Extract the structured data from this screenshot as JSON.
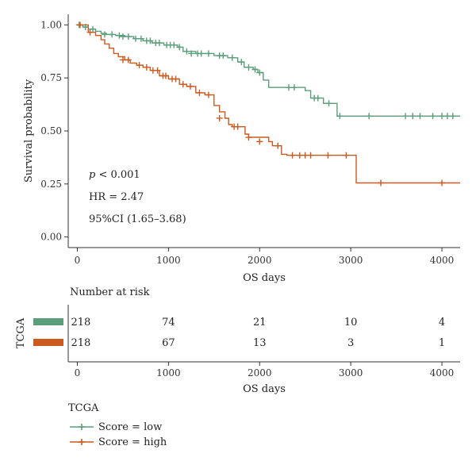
{
  "chart_data": {
    "type": "line",
    "xlabel": "OS days",
    "ylabel": "Survival probability",
    "xlim": [
      -100,
      4200
    ],
    "ylim": [
      -0.05,
      1.05
    ],
    "x_ticks": [
      0,
      1000,
      2000,
      3000,
      4000
    ],
    "y_ticks": [
      0.0,
      0.25,
      0.5,
      0.75,
      1.0
    ],
    "y_tick_labels": [
      "0.00",
      "0.25",
      "0.50",
      "0.75",
      "1.00"
    ],
    "annotations": {
      "p_value": "p < 0.001",
      "p_letter": "p",
      "p_rest": " < 0.001",
      "hr": "HR = 2.47",
      "ci": "95%CI (1.65–3.68)"
    },
    "legend": {
      "title": "TCGA",
      "placement": "bottom-left",
      "entries": [
        {
          "label": "Score = low",
          "color": "#5b9e7a"
        },
        {
          "label": "Score = high",
          "color": "#cc5a1f"
        }
      ]
    },
    "series": [
      {
        "name": "Score = low",
        "color": "#5b9e7a",
        "steps": [
          [
            0,
            1.0
          ],
          [
            60,
            0.99
          ],
          [
            120,
            0.98
          ],
          [
            200,
            0.97
          ],
          [
            260,
            0.96
          ],
          [
            320,
            0.955
          ],
          [
            420,
            0.95
          ],
          [
            520,
            0.945
          ],
          [
            620,
            0.935
          ],
          [
            720,
            0.925
          ],
          [
            820,
            0.915
          ],
          [
            950,
            0.905
          ],
          [
            1100,
            0.895
          ],
          [
            1160,
            0.875
          ],
          [
            1300,
            0.865
          ],
          [
            1500,
            0.855
          ],
          [
            1650,
            0.845
          ],
          [
            1760,
            0.825
          ],
          [
            1830,
            0.8
          ],
          [
            1930,
            0.79
          ],
          [
            1980,
            0.775
          ],
          [
            2040,
            0.74
          ],
          [
            2100,
            0.705
          ],
          [
            2500,
            0.69
          ],
          [
            2560,
            0.655
          ],
          [
            2700,
            0.63
          ],
          [
            2850,
            0.57
          ],
          [
            4200,
            0.57
          ]
        ],
        "censor": [
          [
            20,
            1.0
          ],
          [
            90,
            0.99
          ],
          [
            170,
            0.98
          ],
          [
            300,
            0.955
          ],
          [
            380,
            0.955
          ],
          [
            460,
            0.95
          ],
          [
            500,
            0.945
          ],
          [
            560,
            0.945
          ],
          [
            640,
            0.935
          ],
          [
            700,
            0.935
          ],
          [
            760,
            0.925
          ],
          [
            800,
            0.925
          ],
          [
            860,
            0.915
          ],
          [
            900,
            0.915
          ],
          [
            980,
            0.905
          ],
          [
            1020,
            0.905
          ],
          [
            1060,
            0.905
          ],
          [
            1120,
            0.895
          ],
          [
            1200,
            0.875
          ],
          [
            1250,
            0.865
          ],
          [
            1320,
            0.865
          ],
          [
            1360,
            0.865
          ],
          [
            1440,
            0.865
          ],
          [
            1560,
            0.855
          ],
          [
            1600,
            0.855
          ],
          [
            1700,
            0.845
          ],
          [
            1800,
            0.825
          ],
          [
            1880,
            0.8
          ],
          [
            1950,
            0.79
          ],
          [
            2000,
            0.775
          ],
          [
            2320,
            0.705
          ],
          [
            2380,
            0.705
          ],
          [
            2600,
            0.655
          ],
          [
            2640,
            0.655
          ],
          [
            2760,
            0.63
          ],
          [
            2880,
            0.57
          ],
          [
            3200,
            0.57
          ],
          [
            3600,
            0.57
          ],
          [
            3680,
            0.57
          ],
          [
            3760,
            0.57
          ],
          [
            3900,
            0.57
          ],
          [
            4000,
            0.57
          ],
          [
            4060,
            0.57
          ],
          [
            4120,
            0.57
          ]
        ]
      },
      {
        "name": "Score = high",
        "color": "#cc5a1f",
        "steps": [
          [
            0,
            1.0
          ],
          [
            120,
            0.965
          ],
          [
            200,
            0.95
          ],
          [
            260,
            0.93
          ],
          [
            300,
            0.91
          ],
          [
            350,
            0.89
          ],
          [
            400,
            0.865
          ],
          [
            450,
            0.85
          ],
          [
            520,
            0.835
          ],
          [
            580,
            0.82
          ],
          [
            650,
            0.81
          ],
          [
            720,
            0.8
          ],
          [
            800,
            0.785
          ],
          [
            900,
            0.76
          ],
          [
            1000,
            0.745
          ],
          [
            1120,
            0.72
          ],
          [
            1200,
            0.71
          ],
          [
            1300,
            0.68
          ],
          [
            1400,
            0.67
          ],
          [
            1500,
            0.62
          ],
          [
            1560,
            0.59
          ],
          [
            1620,
            0.56
          ],
          [
            1660,
            0.53
          ],
          [
            1700,
            0.52
          ],
          [
            1840,
            0.485
          ],
          [
            1880,
            0.47
          ],
          [
            2100,
            0.45
          ],
          [
            2140,
            0.43
          ],
          [
            2240,
            0.39
          ],
          [
            2300,
            0.385
          ],
          [
            3040,
            0.385
          ],
          [
            3060,
            0.255
          ],
          [
            4200,
            0.255
          ]
        ],
        "censor": [
          [
            30,
            1.0
          ],
          [
            140,
            0.965
          ],
          [
            500,
            0.835
          ],
          [
            560,
            0.835
          ],
          [
            680,
            0.81
          ],
          [
            760,
            0.8
          ],
          [
            830,
            0.785
          ],
          [
            880,
            0.785
          ],
          [
            940,
            0.76
          ],
          [
            970,
            0.76
          ],
          [
            1040,
            0.745
          ],
          [
            1080,
            0.745
          ],
          [
            1160,
            0.72
          ],
          [
            1240,
            0.71
          ],
          [
            1340,
            0.68
          ],
          [
            1440,
            0.67
          ],
          [
            1560,
            0.56
          ],
          [
            1720,
            0.52
          ],
          [
            1760,
            0.52
          ],
          [
            1880,
            0.47
          ],
          [
            2000,
            0.45
          ],
          [
            2200,
            0.43
          ],
          [
            2360,
            0.385
          ],
          [
            2440,
            0.385
          ],
          [
            2500,
            0.385
          ],
          [
            2560,
            0.385
          ],
          [
            2750,
            0.385
          ],
          [
            2950,
            0.385
          ],
          [
            3330,
            0.255
          ],
          [
            4000,
            0.255
          ]
        ]
      }
    ],
    "risk_table": {
      "title": "Number at risk",
      "group_label": "TCGA",
      "xlabel": "OS days",
      "x_ticks": [
        0,
        1000,
        2000,
        3000,
        4000
      ],
      "rows": [
        {
          "color": "#5b9e7a",
          "values": [
            "218",
            "74",
            "21",
            "10",
            "4"
          ]
        },
        {
          "color": "#cc5a1f",
          "values": [
            "218",
            "67",
            "13",
            "3",
            "1"
          ]
        }
      ]
    }
  }
}
